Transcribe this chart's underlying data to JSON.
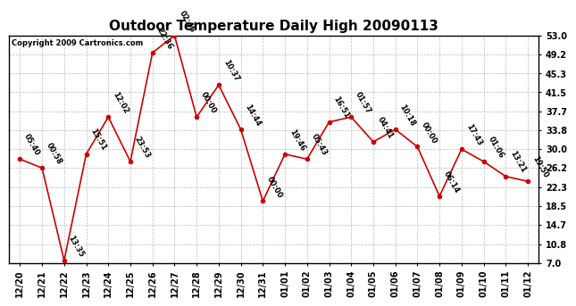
{
  "title": "Outdoor Temperature Daily High 20090113",
  "copyright": "Copyright 2009 Cartronics.com",
  "x_labels": [
    "12/20",
    "12/21",
    "12/22",
    "12/23",
    "12/24",
    "12/25",
    "12/26",
    "12/27",
    "12/28",
    "12/29",
    "12/30",
    "12/31",
    "01/01",
    "01/02",
    "01/03",
    "01/04",
    "01/05",
    "01/06",
    "01/07",
    "01/08",
    "01/09",
    "01/10",
    "01/11",
    "01/12"
  ],
  "y_values": [
    28.0,
    26.2,
    7.5,
    29.0,
    36.5,
    27.5,
    49.5,
    53.0,
    36.5,
    43.0,
    34.0,
    19.5,
    29.0,
    28.0,
    35.5,
    36.5,
    31.5,
    34.0,
    30.5,
    20.5,
    30.0,
    27.5,
    24.5,
    23.5
  ],
  "time_labels": [
    "05:40",
    "00:58",
    "13:35",
    "15:51",
    "12:02",
    "23:53",
    "22:36",
    "02:46",
    "00:00",
    "10:37",
    "14:44",
    "00:00",
    "19:46",
    "05:43",
    "16:51",
    "01:57",
    "04:41",
    "10:18",
    "00:00",
    "06:14",
    "17:43",
    "01:06",
    "13:21",
    "19:50"
  ],
  "y_ticks": [
    7.0,
    10.8,
    14.7,
    18.5,
    22.3,
    26.2,
    30.0,
    33.8,
    37.7,
    41.5,
    45.3,
    49.2,
    53.0
  ],
  "line_color": "#cc0000",
  "marker_color": "#cc0000",
  "bg_color": "#ffffff",
  "grid_color": "#aaaaaa",
  "title_fontsize": 11,
  "label_fontsize": 6,
  "tick_fontsize": 7,
  "copyright_fontsize": 6,
  "y_min": 7.0,
  "y_max": 53.0
}
